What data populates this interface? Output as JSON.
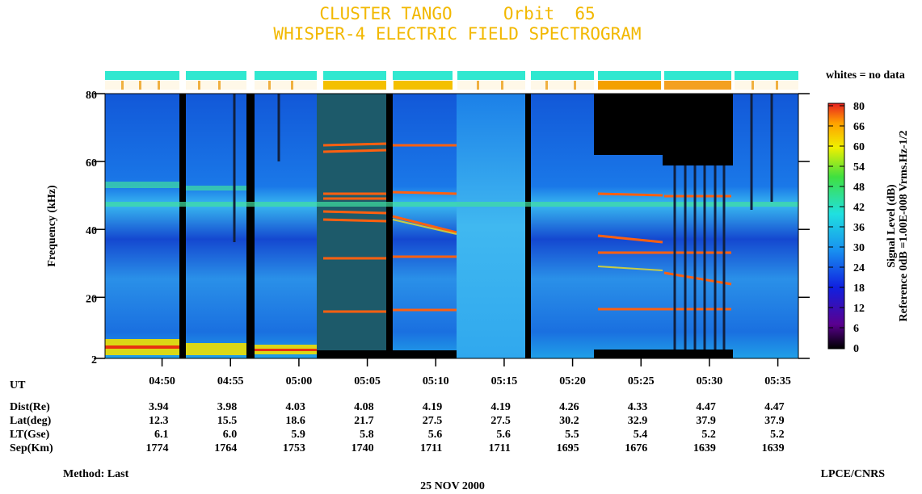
{
  "chart_data": {
    "type": "spectrogram",
    "title": "CLUSTER TANGO     Orbit  65",
    "subtitle": "WHISPER-4 ELECTRIC FIELD SPECTROGRAM",
    "ylabel": "Frequency (kHz)",
    "ylim": [
      2,
      80
    ],
    "yticks": [
      2,
      20,
      40,
      60,
      80
    ],
    "xlabel": "UT",
    "xlim": [
      "04:45:50",
      "05:36:30"
    ],
    "xticks": [
      "04:50",
      "04:55",
      "05:00",
      "05:05",
      "05:10",
      "05:15",
      "05:20",
      "05:25",
      "05:30",
      "05:35"
    ],
    "colorbar_label": "Signal Level (dB)",
    "colorbar_reference": "Reference 0dB =1.00E-008 Vrms.Hz-1/2",
    "colorbar_ticks": [
      0,
      6,
      12,
      18,
      24,
      30,
      36,
      42,
      48,
      54,
      60,
      66,
      80
    ],
    "legend_note": "whites = no data",
    "orbit_table": [
      {
        "label": "Dist(Re)",
        "values": [
          "3.94",
          "3.98",
          "4.03",
          "4.08",
          "4.19",
          "4.19",
          "4.26",
          "4.33",
          "4.47",
          "4.47"
        ]
      },
      {
        "label": "Lat(deg)",
        "values": [
          "12.3",
          "15.5",
          "18.6",
          "21.7",
          "27.5",
          "27.5",
          "30.2",
          "32.9",
          "37.9",
          "37.9"
        ]
      },
      {
        "label": "LT(Gse)",
        "values": [
          "6.1",
          "6.0",
          "5.9",
          "5.8",
          "5.6",
          "5.6",
          "5.5",
          "5.4",
          "5.2",
          "5.2"
        ]
      },
      {
        "label": "Sep(Km)",
        "values": [
          "1774",
          "1764",
          "1753",
          "1740",
          "1711",
          "1711",
          "1695",
          "1676",
          "1639",
          "1639"
        ]
      }
    ],
    "method": "Method: Last",
    "date": "25 NOV 2000",
    "credit": "LPCE/CNRS"
  }
}
